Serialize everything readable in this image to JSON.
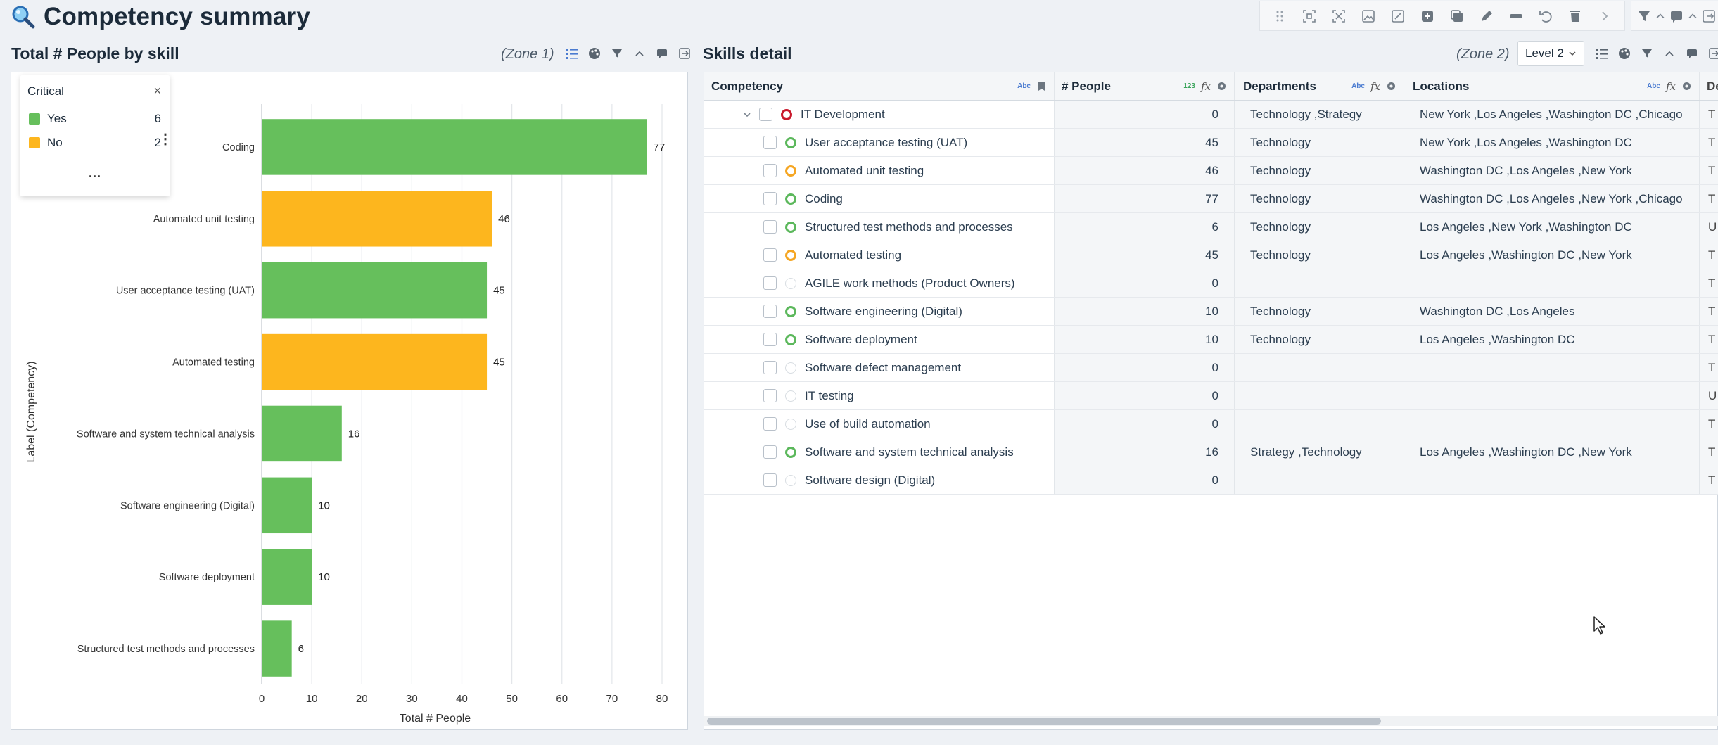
{
  "page": {
    "title": "Competency summary"
  },
  "icons": {
    "title": "magnifier-icon",
    "toolbar": [
      "drag-handle-icon",
      "select-region-icon",
      "expand-icon",
      "image-icon",
      "image-edit-icon",
      "add-icon",
      "duplicate-icon",
      "pen-icon",
      "divider-icon",
      "undo-icon",
      "trash-icon",
      "chevron-right-icon",
      "filter-icon",
      "chevron-up-icon",
      "comment-icon",
      "chevron-up-icon",
      "export-icon"
    ]
  },
  "left_panel": {
    "title": "Total # People by skill",
    "zone": "(Zone 1)",
    "legend": {
      "title": "Critical",
      "close": "×",
      "items": [
        {
          "label": "Yes",
          "count": "6",
          "color": "#66bf5c"
        },
        {
          "label": "No",
          "count": "2",
          "color": "#fdb61e"
        }
      ],
      "more": "...",
      "kebab": "⋮"
    }
  },
  "chart_data": {
    "type": "bar",
    "orientation": "horizontal",
    "categories": [
      "Coding",
      "Automated unit testing",
      "User acceptance testing (UAT)",
      "Automated testing",
      "Software and system technical analysis",
      "Software engineering (Digital)",
      "Software deployment",
      "Structured test methods and processes"
    ],
    "values": [
      77,
      46,
      45,
      45,
      16,
      10,
      10,
      6
    ],
    "critical": [
      "Yes",
      "No",
      "Yes",
      "No",
      "Yes",
      "Yes",
      "Yes",
      "Yes"
    ],
    "colors": {
      "Yes": "#66bf5c",
      "No": "#fdb61e"
    },
    "xlabel": "Total # People",
    "ylabel": "Label (Competency)",
    "xlim": [
      0,
      80
    ],
    "xticks": [
      0,
      10,
      20,
      30,
      40,
      50,
      60,
      70,
      80
    ],
    "grid": true,
    "legend": "top-left"
  },
  "right_panel": {
    "title": "Skills detail",
    "zone": "(Zone 2)",
    "level_select": "Level 2",
    "columns": [
      {
        "label": "Competency",
        "type": "Abc"
      },
      {
        "label": "# People",
        "type": "123"
      },
      {
        "label": "Departments",
        "type": "Abc"
      },
      {
        "label": "Locations",
        "type": "Abc"
      },
      {
        "label": "De"
      }
    ],
    "fx_label": "fx",
    "rows": [
      {
        "name": "IT Development",
        "status": "red",
        "level": 0,
        "people": "0",
        "departments": "Technology ,Strategy",
        "locations": "New York ,Los Angeles ,Washington DC ,Chicago",
        "extra": "T"
      },
      {
        "name": "User acceptance testing (UAT)",
        "status": "green",
        "level": 1,
        "people": "45",
        "departments": "Technology",
        "locations": "New York ,Los Angeles ,Washington DC",
        "extra": "T"
      },
      {
        "name": "Automated unit testing",
        "status": "orange",
        "level": 1,
        "people": "46",
        "departments": "Technology",
        "locations": "Washington DC ,Los Angeles ,New York",
        "extra": "T"
      },
      {
        "name": "Coding",
        "status": "green",
        "level": 1,
        "people": "77",
        "departments": "Technology",
        "locations": "Washington DC ,Los Angeles ,New York ,Chicago",
        "extra": "T"
      },
      {
        "name": "Structured test methods and processes",
        "status": "green",
        "level": 1,
        "people": "6",
        "departments": "Technology",
        "locations": "Los Angeles ,New York ,Washington DC",
        "extra": "U"
      },
      {
        "name": "Automated testing",
        "status": "orange",
        "level": 1,
        "people": "45",
        "departments": "Technology",
        "locations": "Los Angeles ,Washington DC ,New York",
        "extra": "T"
      },
      {
        "name": "AGILE work methods (Product Owners)",
        "status": "none",
        "level": 1,
        "people": "0",
        "departments": "",
        "locations": "",
        "extra": "T"
      },
      {
        "name": "Software engineering (Digital)",
        "status": "green",
        "level": 1,
        "people": "10",
        "departments": "Technology",
        "locations": "Washington DC ,Los Angeles",
        "extra": "T"
      },
      {
        "name": "Software deployment",
        "status": "green",
        "level": 1,
        "people": "10",
        "departments": "Technology",
        "locations": "Los Angeles ,Washington DC",
        "extra": "T"
      },
      {
        "name": "Software defect management",
        "status": "none",
        "level": 1,
        "people": "0",
        "departments": "",
        "locations": "",
        "extra": "T"
      },
      {
        "name": "IT testing",
        "status": "none",
        "level": 1,
        "people": "0",
        "departments": "",
        "locations": "",
        "extra": "U"
      },
      {
        "name": "Use of build automation",
        "status": "none",
        "level": 1,
        "people": "0",
        "departments": "",
        "locations": "",
        "extra": "T"
      },
      {
        "name": "Software and system technical analysis",
        "status": "green",
        "level": 1,
        "people": "16",
        "departments": "Strategy ,Technology",
        "locations": "Los Angeles ,Washington DC ,New York",
        "extra": "T"
      },
      {
        "name": "Software design (Digital)",
        "status": "none",
        "level": 1,
        "people": "0",
        "departments": "",
        "locations": "",
        "extra": "T"
      }
    ]
  }
}
